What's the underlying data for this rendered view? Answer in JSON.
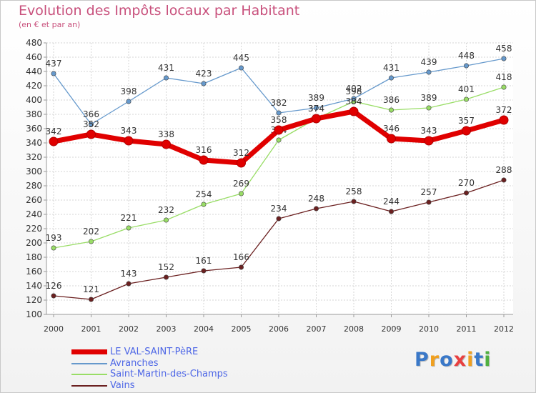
{
  "title": "Evolution des Impôts locaux par Habitant",
  "subtitle": "(en € et par an)",
  "logo": {
    "text": "Proxiti",
    "letters": [
      "P",
      "r",
      "o",
      "x",
      "i",
      "t",
      "i"
    ],
    "colors": [
      "#3a78c8",
      "#f0a020",
      "#3a78c8",
      "#e84040",
      "#f0a020",
      "#3a78c8",
      "#50b040"
    ]
  },
  "chart_data": {
    "type": "line",
    "title": "Evolution des Impôts locaux par Habitant",
    "subtitle": "(en € et par an)",
    "xlabel": "",
    "ylabel": "",
    "x": [
      2000,
      2001,
      2002,
      2003,
      2004,
      2005,
      2006,
      2007,
      2008,
      2009,
      2010,
      2011,
      2012
    ],
    "ylim": [
      100,
      480
    ],
    "yticks": [
      100,
      120,
      140,
      160,
      180,
      200,
      220,
      240,
      260,
      280,
      300,
      320,
      340,
      360,
      380,
      400,
      420,
      440,
      460,
      480
    ],
    "grid": true,
    "legend_position": "bottom-left",
    "series": [
      {
        "name": "LE VAL-SAINT-PèRE",
        "color": "#e00000",
        "values": [
          342,
          352,
          343,
          338,
          316,
          312,
          358,
          374,
          384,
          346,
          343,
          357,
          372
        ],
        "labels": [
          "342",
          "352",
          "343",
          "338",
          "316",
          "312",
          "358",
          "374",
          "384",
          "346",
          "343",
          "357",
          "372"
        ]
      },
      {
        "name": "Avranches",
        "color": "#6699cc",
        "values": [
          437,
          366,
          398,
          431,
          423,
          445,
          382,
          389,
          402,
          431,
          439,
          448,
          458
        ],
        "labels": [
          "437",
          "366",
          "398",
          "431",
          "423",
          "445",
          "382",
          "389",
          "402",
          "431",
          "439",
          "448",
          "458"
        ]
      },
      {
        "name": "Saint-Martin-des-Champs",
        "color": "#99dd66",
        "values": [
          193,
          202,
          221,
          232,
          254,
          269,
          344,
          374,
          398,
          386,
          389,
          401,
          418
        ],
        "labels": [
          "193",
          "202",
          "221",
          "232",
          "254",
          "269",
          "344",
          "374",
          "398",
          "386",
          "389",
          "401",
          "418"
        ]
      },
      {
        "name": "Vains",
        "color": "#6b2020",
        "values": [
          126,
          121,
          143,
          152,
          161,
          166,
          234,
          248,
          258,
          244,
          257,
          270,
          288
        ],
        "labels": [
          "126",
          "121",
          "143",
          "152",
          "161",
          "166",
          "234",
          "248",
          "258",
          "244",
          "257",
          "270",
          "288"
        ]
      }
    ]
  }
}
